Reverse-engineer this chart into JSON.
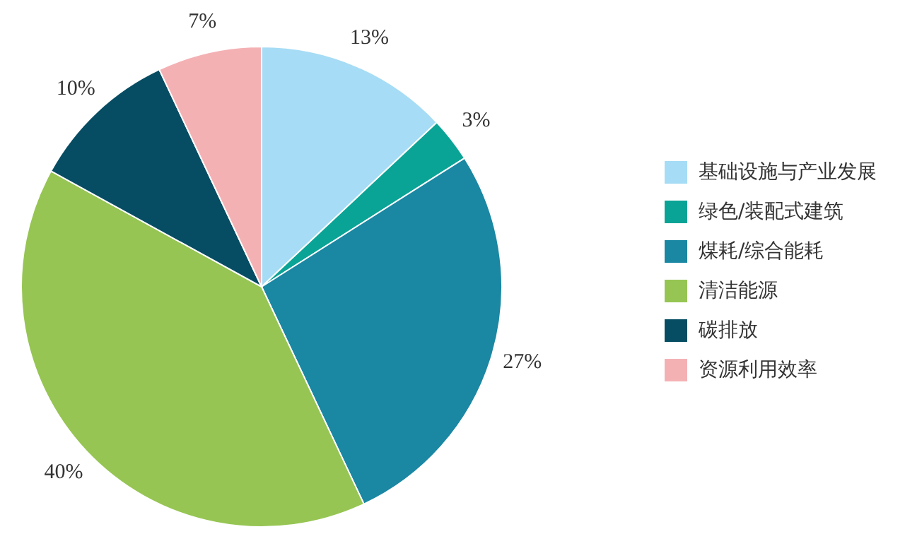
{
  "chart_data": {
    "type": "pie",
    "categories": [
      "基础设施与产业发展",
      "绿色/装配式建筑",
      "煤耗/综合能耗",
      "清洁能源",
      "碳排放",
      "资源利用效率"
    ],
    "values": [
      13,
      3,
      27,
      40,
      10,
      7
    ],
    "value_labels": [
      "13%",
      "3%",
      "27%",
      "40%",
      "10%",
      "7%"
    ],
    "colors": [
      "#a6dcf5",
      "#0aa496",
      "#1a87a3",
      "#96c553",
      "#064d63",
      "#f4b1b4"
    ],
    "legend": "right"
  }
}
